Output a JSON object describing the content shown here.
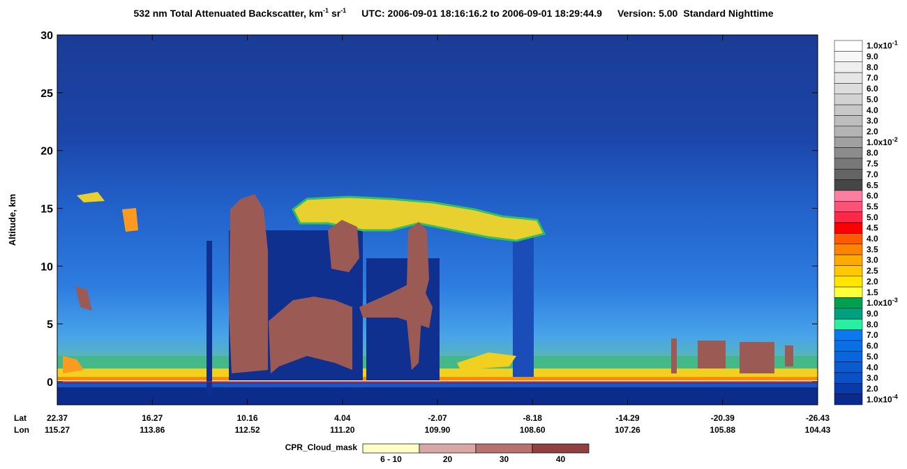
{
  "chart_data": {
    "type": "heatmap",
    "title": {
      "main": "532 nm Total Attenuated Backscatter, km",
      "sup1": "-1",
      "mid": " sr",
      "sup2": "-1",
      "utc": "UTC:  2006-09-01 18:16:16.2  to  2006-09-01 18:29:44.9",
      "version": "Version: 5.00",
      "mode": "Standard  Nighttime"
    },
    "y_label": "Altitude, km",
    "ylim": [
      -2,
      30
    ],
    "yticks": [
      0,
      5,
      10,
      15,
      20,
      25,
      30
    ],
    "x_tick_rows": [
      {
        "name": "Lat",
        "labels": [
          "22.37",
          "16.27",
          "10.16",
          "4.04",
          "-2.07",
          "-8.18",
          "-14.29",
          "-20.39",
          "-26.43"
        ]
      },
      {
        "name": "Lon",
        "labels": [
          "115.27",
          "113.86",
          "112.52",
          "111.20",
          "109.90",
          "108.60",
          "107.26",
          "105.88",
          "104.43"
        ]
      }
    ],
    "colorbar": {
      "labels": [
        {
          "base": "1.0x10",
          "exp": "-1"
        },
        "9.0",
        "8.0",
        "7.0",
        "6.0",
        "5.0",
        "4.0",
        "3.0",
        "2.0",
        {
          "base": "1.0x10",
          "exp": "-2"
        },
        "8.0",
        "7.5",
        "7.0",
        "6.5",
        "6.0",
        "5.5",
        "5.0",
        "4.5",
        "4.0",
        "3.5",
        "3.0",
        "2.5",
        "2.0",
        "1.5",
        {
          "base": "1.0x10",
          "exp": "-3"
        },
        "9.0",
        "8.0",
        "7.0",
        "6.0",
        "5.0",
        "4.0",
        "3.0",
        "2.0",
        {
          "base": "1.0x10",
          "exp": "-4"
        }
      ],
      "colors": [
        "#ffffff",
        "#f7f7f7",
        "#efefef",
        "#e6e6e6",
        "#dcdcdc",
        "#d2d2d2",
        "#c8c8c8",
        "#bebebe",
        "#b4b4b4",
        "#a0a0a0",
        "#8c8c8c",
        "#787878",
        "#646464",
        "#464646",
        "#ff7fa0",
        "#ff5078",
        "#ff2848",
        "#ff0000",
        "#ff5a00",
        "#ff8200",
        "#ffaa00",
        "#ffc800",
        "#ffe600",
        "#ffff3c",
        "#00a050",
        "#00a080",
        "#28f0a0",
        "#0a78f0",
        "#0a6ee6",
        "#0a64dc",
        "#0a5ad2",
        "#0a50c8",
        "#0a3aa8",
        "#0a2a90"
      ]
    },
    "cpr_legend": {
      "title": "CPR_Cloud_mask",
      "labels": [
        "6 - 10",
        "20",
        "30",
        "40"
      ],
      "colors": [
        "#ffffc8",
        "#d8a8a8",
        "#b87070",
        "#8f4040"
      ]
    }
  }
}
